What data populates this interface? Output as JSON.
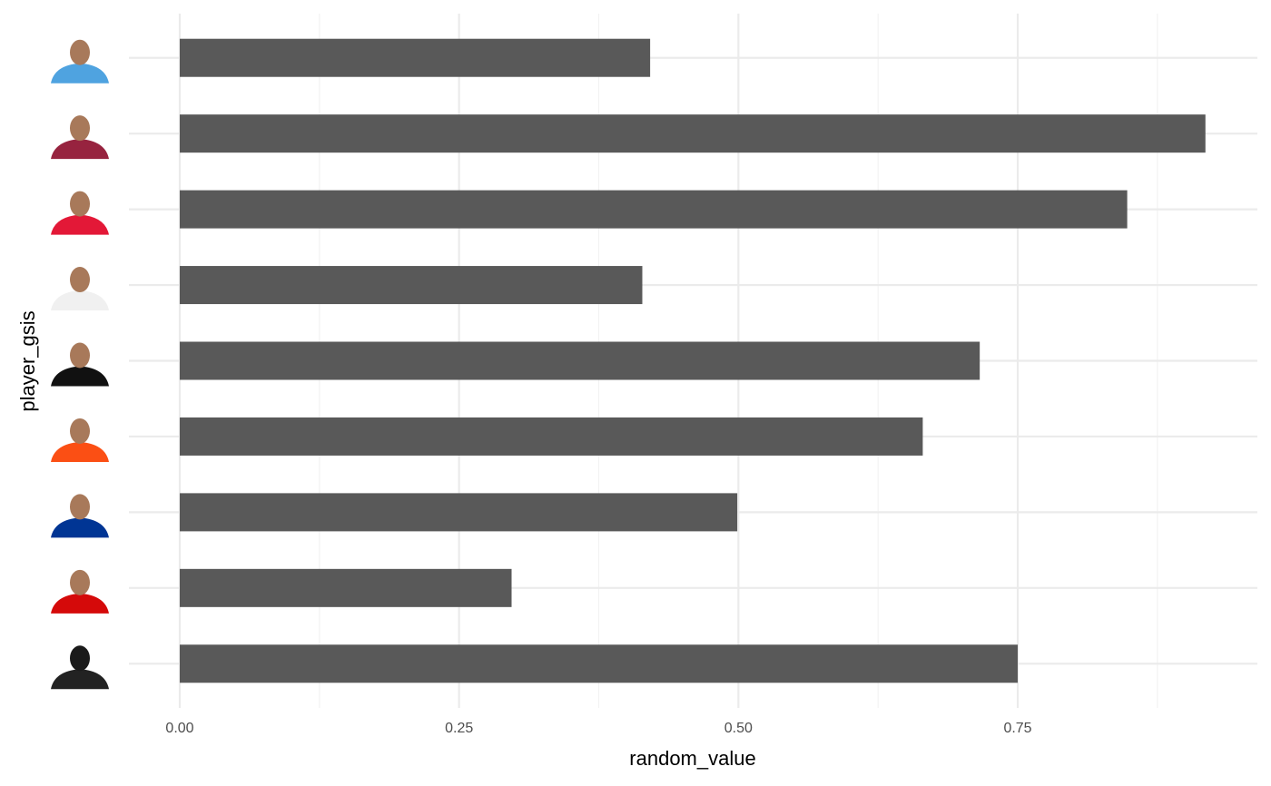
{
  "chart_data": {
    "type": "bar",
    "orientation": "horizontal",
    "x_label": "random_value",
    "y_label": "player_gsis",
    "categories": [
      null,
      null,
      null,
      null,
      null,
      null,
      null,
      null,
      null
    ],
    "values": [
      0.421,
      0.918,
      0.848,
      0.414,
      0.716,
      0.665,
      0.499,
      0.297,
      0.75
    ],
    "color": "#595959",
    "xlim": [
      -0.0455,
      0.9645
    ],
    "xticks": [
      {
        "value": 0,
        "label": "0.00"
      },
      {
        "value": 0.25,
        "label": "0.25"
      },
      {
        "value": 0.5,
        "label": "0.50"
      },
      {
        "value": 0.75,
        "label": "0.75"
      }
    ],
    "grid": true
  }
}
